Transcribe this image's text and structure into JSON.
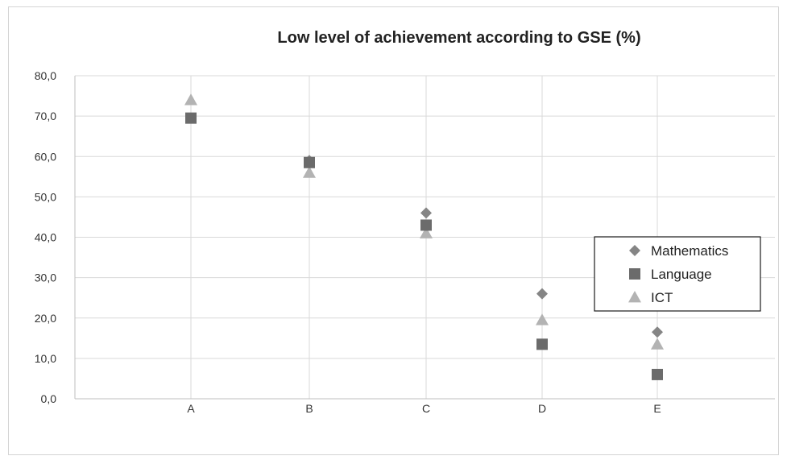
{
  "chart_data": {
    "type": "scatter",
    "title": "Low level of achievement according to GSE (%)",
    "categories": [
      "A",
      "B",
      "C",
      "D",
      "E"
    ],
    "ylim": [
      0,
      80
    ],
    "yticks": [
      "0,0",
      "10,0",
      "20,0",
      "30,0",
      "40,0",
      "50,0",
      "60,0",
      "70,0",
      "80,0"
    ],
    "grid": true,
    "legend_position": "right",
    "series": [
      {
        "name": "Mathematics",
        "marker": "diamond",
        "color": "#858585",
        "values": [
          69.5,
          59.0,
          46.0,
          26.0,
          16.5
        ]
      },
      {
        "name": "Language",
        "marker": "square",
        "color": "#6b6b6b",
        "values": [
          69.5,
          58.5,
          43.0,
          13.5,
          6.0
        ]
      },
      {
        "name": "ICT",
        "marker": "triangle",
        "color": "#b3b3b3",
        "values": [
          74.0,
          56.0,
          41.0,
          19.5,
          13.5
        ]
      }
    ]
  }
}
